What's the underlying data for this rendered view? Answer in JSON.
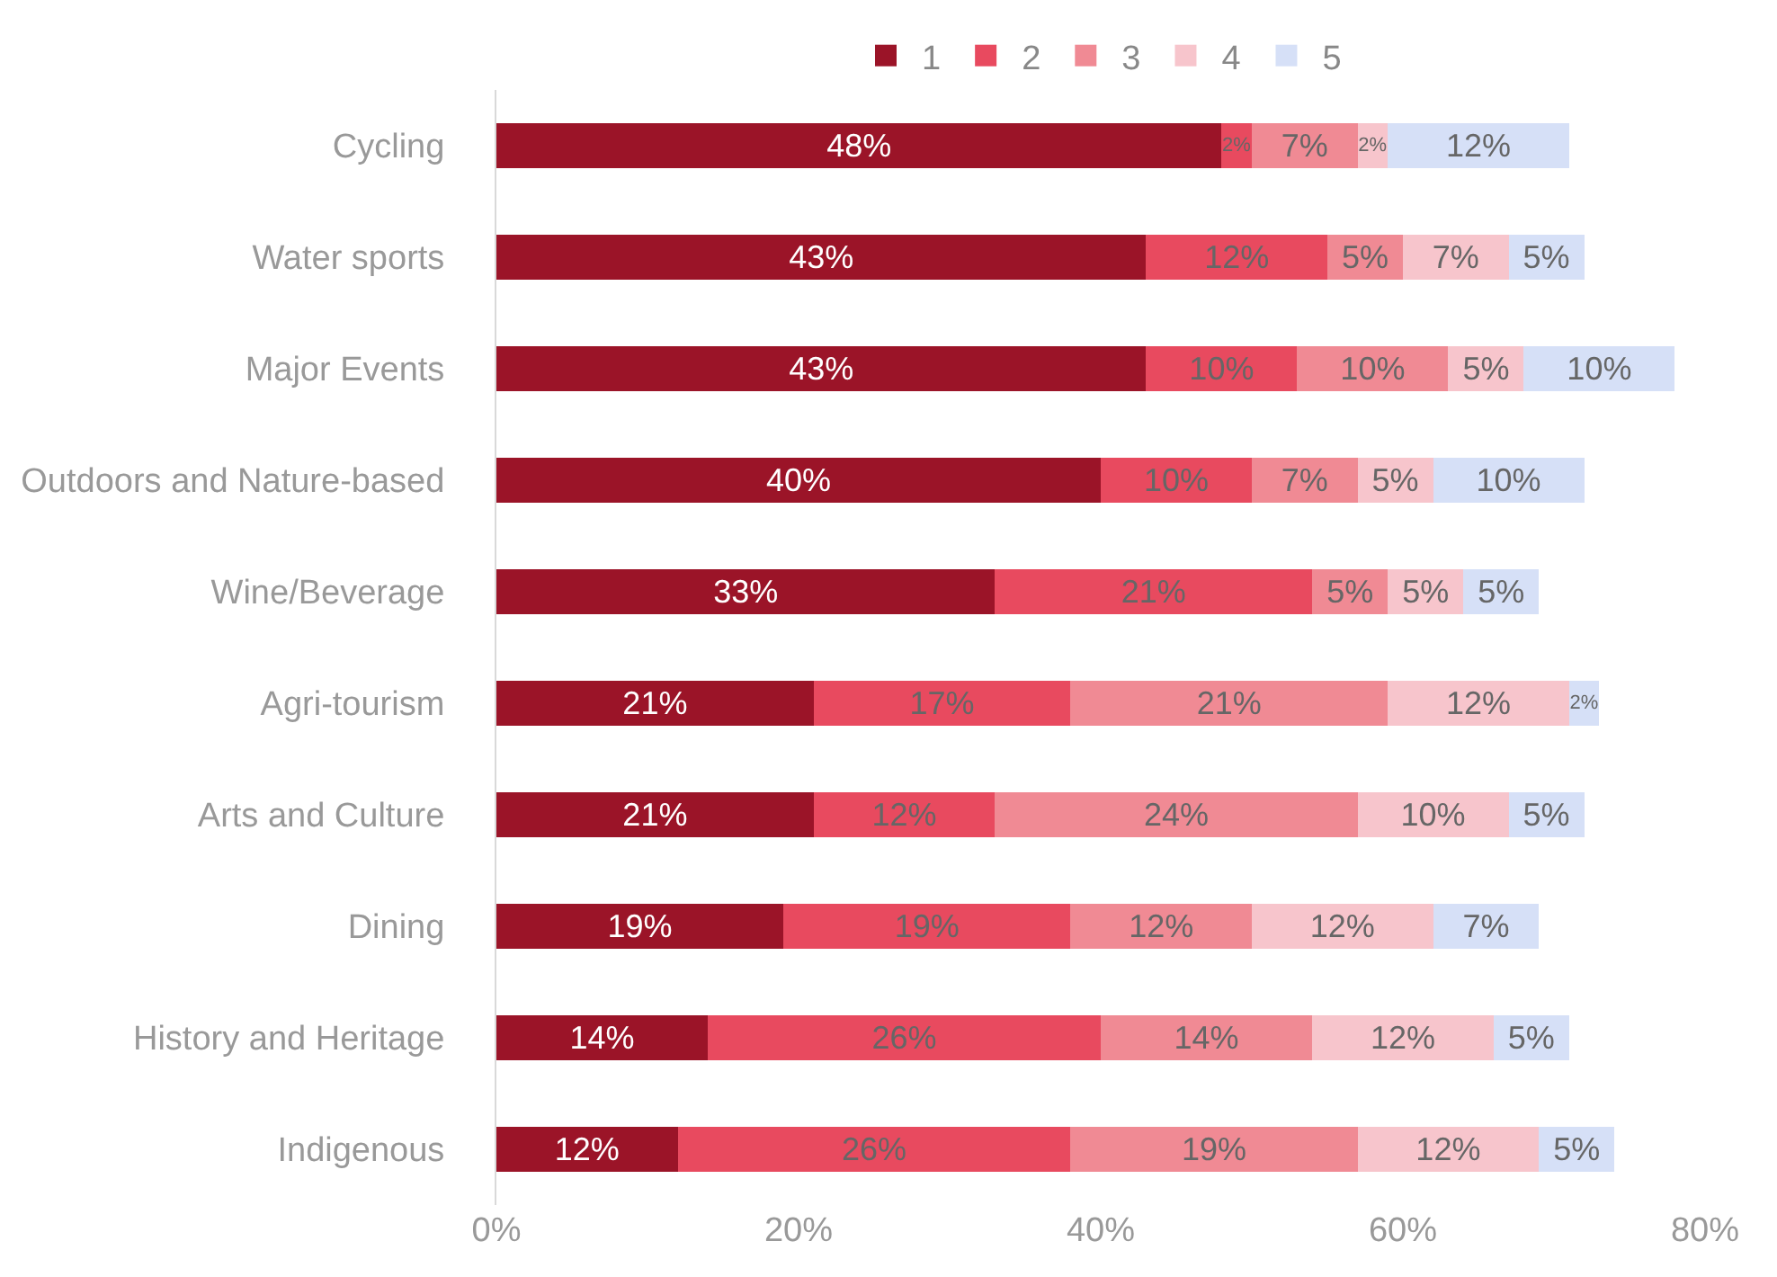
{
  "chart_data": {
    "type": "bar",
    "orientation": "horizontal",
    "stacked": true,
    "legend": "top",
    "categories": [
      "Cycling",
      "Water sports",
      "Major Events",
      "Outdoors and Nature-based",
      "Wine/Beverage",
      "Agri-tourism",
      "Arts and Culture",
      "Dining",
      "History and Heritage",
      "Indigenous"
    ],
    "series": [
      {
        "name": "1",
        "color": "#9b1428",
        "values": [
          48,
          43,
          43,
          40,
          33,
          21,
          21,
          19,
          14,
          12
        ],
        "value_labels": [
          "48%",
          "43%",
          "43%",
          "40%",
          "33%",
          "21%",
          "21%",
          "19%",
          "14%",
          "12%"
        ]
      },
      {
        "name": "2",
        "color": "#e84a5f",
        "values": [
          2,
          12,
          10,
          10,
          21,
          17,
          12,
          19,
          26,
          26
        ],
        "value_labels": [
          "2%",
          "12%",
          "10%",
          "10%",
          "21%",
          "17%",
          "12%",
          "19%",
          "26%",
          "26%"
        ]
      },
      {
        "name": "3",
        "color": "#f08a94",
        "values": [
          7,
          5,
          10,
          7,
          5,
          21,
          24,
          12,
          14,
          19
        ],
        "value_labels": [
          "7%",
          "5%",
          "10%",
          "7%",
          "5%",
          "21%",
          "24%",
          "12%",
          "14%",
          "19%"
        ]
      },
      {
        "name": "4",
        "color": "#f7c5cc",
        "values": [
          2,
          7,
          5,
          5,
          5,
          12,
          10,
          12,
          12,
          12
        ],
        "value_labels": [
          "2%",
          "7%",
          "5%",
          "5%",
          "5%",
          "12%",
          "10%",
          "12%",
          "12%",
          "12%"
        ]
      },
      {
        "name": "5",
        "color": "#d6e0f7",
        "values": [
          12,
          5,
          10,
          10,
          5,
          2,
          5,
          7,
          5,
          5
        ],
        "value_labels": [
          "12%",
          "5%",
          "10%",
          "10%",
          "5%",
          "2%",
          "5%",
          "7%",
          "5%",
          "5%"
        ]
      }
    ],
    "xlim": [
      0,
      80
    ],
    "xticks": [
      {
        "value": 0,
        "label": "0%"
      },
      {
        "value": 20,
        "label": "20%"
      },
      {
        "value": 40,
        "label": "40%"
      },
      {
        "value": 60,
        "label": "60%"
      },
      {
        "value": 80,
        "label": "80%"
      }
    ]
  }
}
